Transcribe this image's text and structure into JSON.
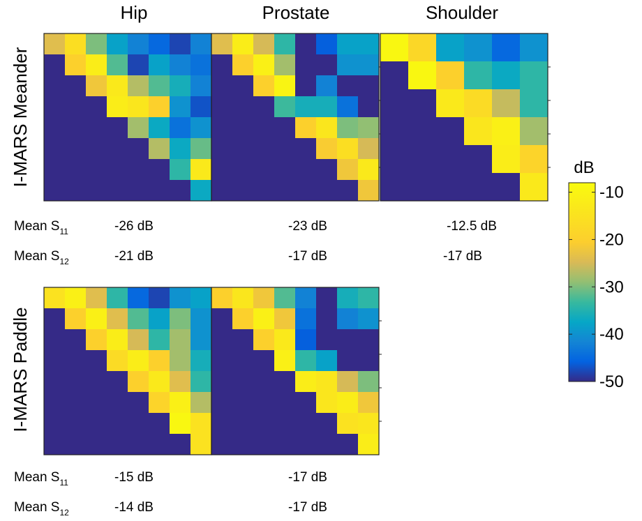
{
  "chart_data": {
    "type": "heatmap",
    "value_unit": "dB",
    "colorbar": {
      "title": "dB",
      "range": [
        -50,
        -8
      ],
      "ticks": [
        -10,
        -20,
        -30,
        -40,
        -50
      ],
      "tick_labels": [
        "-10",
        "-20",
        "-30",
        "-40",
        "-50"
      ]
    },
    "columns": [
      "Hip",
      "Prostate",
      "Shoulder"
    ],
    "rows": [
      {
        "label": "I-MARS Meander",
        "stats": [
          {
            "label": "Mean S",
            "sub": "11",
            "values": [
              "-26 dB",
              "-23 dB",
              "-12.5 dB"
            ]
          },
          {
            "label": "Mean S",
            "sub": "12",
            "values": [
              "-21 dB",
              "-17 dB",
              "-17 dB"
            ]
          }
        ]
      },
      {
        "label": "I-MARS Paddle",
        "stats": [
          {
            "label": "Mean S",
            "sub": "11",
            "values": [
              "-15 dB",
              "-17 dB"
            ]
          },
          {
            "label": "Mean S",
            "sub": "12",
            "values": [
              "-14 dB",
              "-17 dB"
            ]
          }
        ]
      }
    ],
    "matrices": [
      {
        "row": "I-MARS Meander",
        "column": "Hip",
        "values": [
          [
            -24,
            -16,
            -30,
            -38,
            -42,
            -45,
            -48,
            -42
          ],
          [
            -50,
            -20,
            -12,
            -32,
            -48,
            -38,
            -42,
            -44
          ],
          [
            -50,
            -50,
            -22,
            -13,
            -27,
            -32,
            -36,
            -42
          ],
          [
            -50,
            -50,
            -50,
            -12,
            -14,
            -20,
            -40,
            -47
          ],
          [
            -50,
            -50,
            -50,
            -50,
            -28,
            -37,
            -44,
            -40
          ],
          [
            -50,
            -50,
            -50,
            -50,
            -50,
            -27,
            -37,
            -31
          ],
          [
            -50,
            -50,
            -50,
            -50,
            -50,
            -50,
            -34,
            -13
          ],
          [
            -50,
            -50,
            -50,
            -50,
            -50,
            -50,
            -50,
            -37
          ]
        ]
      },
      {
        "row": "I-MARS Meander",
        "column": "Prostate",
        "values": [
          [
            -24,
            -12,
            -25,
            -34,
            -50,
            -46,
            -38,
            -38
          ],
          [
            -50,
            -20,
            -11,
            -28,
            -50,
            -50,
            -40,
            -40
          ],
          [
            -50,
            -50,
            -20,
            -10,
            -50,
            -42,
            -50,
            -50
          ],
          [
            -50,
            -50,
            -50,
            -33,
            -36,
            -36,
            -44,
            -50
          ],
          [
            -50,
            -50,
            -50,
            -50,
            -20,
            -14,
            -30,
            -29
          ],
          [
            -50,
            -50,
            -50,
            -50,
            -50,
            -21,
            -16,
            -25
          ],
          [
            -50,
            -50,
            -50,
            -50,
            -50,
            -50,
            -22,
            -13
          ],
          [
            -50,
            -50,
            -50,
            -50,
            -50,
            -50,
            -50,
            -22
          ]
        ]
      },
      {
        "row": "I-MARS Meander",
        "column": "Shoulder",
        "values": [
          [
            -9,
            -18,
            -38,
            -40,
            -45,
            -40
          ],
          [
            -50,
            -9,
            -20,
            -34,
            -37,
            -34
          ],
          [
            -50,
            -50,
            -13,
            -17,
            -26,
            -34
          ],
          [
            -50,
            -50,
            -50,
            -14,
            -11,
            -28
          ],
          [
            -50,
            -50,
            -50,
            -50,
            -12,
            -19
          ],
          [
            -50,
            -50,
            -50,
            -50,
            -50,
            -13
          ]
        ]
      },
      {
        "row": "I-MARS Paddle",
        "column": "Hip",
        "values": [
          [
            -15,
            -11,
            -24,
            -34,
            -45,
            -48,
            -40,
            -38
          ],
          [
            -50,
            -20,
            -11,
            -24,
            -32,
            -38,
            -30,
            -40
          ],
          [
            -50,
            -50,
            -20,
            -12,
            -25,
            -34,
            -28,
            -40
          ],
          [
            -50,
            -50,
            -50,
            -17,
            -12,
            -20,
            -28,
            -36
          ],
          [
            -50,
            -50,
            -50,
            -50,
            -20,
            -13,
            -24,
            -34
          ],
          [
            -50,
            -50,
            -50,
            -50,
            -50,
            -19,
            -11,
            -27
          ],
          [
            -50,
            -50,
            -50,
            -50,
            -50,
            -50,
            -9,
            -15
          ],
          [
            -50,
            -50,
            -50,
            -50,
            -50,
            -50,
            -50,
            -15
          ]
        ]
      },
      {
        "row": "I-MARS Paddle",
        "column": "Prostate",
        "values": [
          [
            -20,
            -14,
            -22,
            -32,
            -42,
            -50,
            -36,
            -34
          ],
          [
            -50,
            -20,
            -11,
            -22,
            -44,
            -50,
            -42,
            -40
          ],
          [
            -50,
            -50,
            -20,
            -13,
            -46,
            -50,
            -50,
            -50
          ],
          [
            -50,
            -50,
            -50,
            -11,
            -34,
            -38,
            -50,
            -50
          ],
          [
            -50,
            -50,
            -50,
            -50,
            -12,
            -14,
            -25,
            -30
          ],
          [
            -50,
            -50,
            -50,
            -50,
            -50,
            -14,
            -12,
            -22
          ],
          [
            -50,
            -50,
            -50,
            -50,
            -50,
            -50,
            -15,
            -14
          ],
          [
            -50,
            -50,
            -50,
            -50,
            -50,
            -50,
            -50,
            -12
          ]
        ]
      }
    ]
  }
}
